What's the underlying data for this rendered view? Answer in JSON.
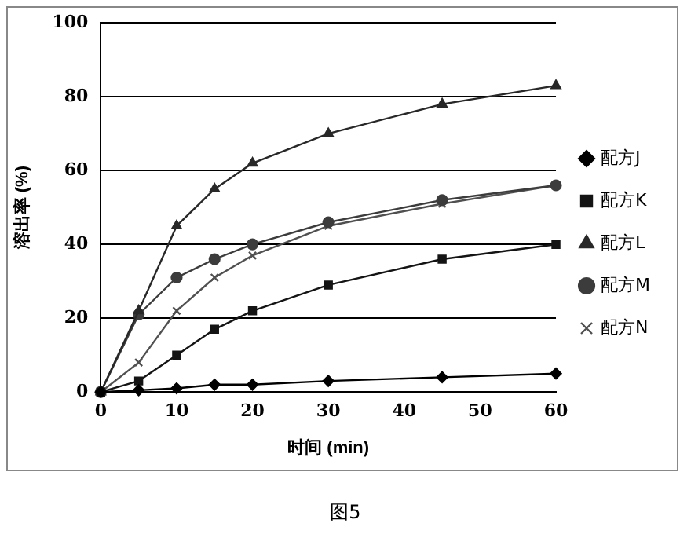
{
  "chart_data": {
    "type": "line",
    "xlabel": "时间 (min)",
    "ylabel": "溶出率 (%)",
    "x": [
      0,
      5,
      10,
      15,
      20,
      30,
      45,
      60
    ],
    "series": [
      {
        "name": "配方J",
        "color": "#000000",
        "marker": "diamond",
        "values": [
          0,
          0.5,
          1,
          2,
          2,
          3,
          4,
          5
        ]
      },
      {
        "name": "配方K",
        "color": "#141414",
        "marker": "square",
        "values": [
          0,
          3,
          10,
          17,
          22,
          29,
          36,
          40
        ]
      },
      {
        "name": "配方L",
        "color": "#282828",
        "marker": "triangle",
        "values": [
          0,
          22,
          45,
          55,
          62,
          70,
          78,
          83
        ]
      },
      {
        "name": "配方M",
        "color": "#3c3c3c",
        "marker": "circle",
        "values": [
          0,
          21,
          31,
          36,
          40,
          46,
          52,
          56
        ]
      },
      {
        "name": "配方N",
        "color": "#505050",
        "marker": "cross",
        "values": [
          0,
          8,
          22,
          31,
          37,
          45,
          51,
          56
        ]
      }
    ],
    "xlim": [
      0,
      60
    ],
    "xticks": [
      0,
      10,
      20,
      30,
      40,
      50,
      60
    ],
    "ylim": [
      0,
      100
    ],
    "yticks": [
      0,
      20,
      40,
      60,
      80,
      100
    ],
    "grid": "y",
    "legend": "right",
    "annotations": [
      "图5"
    ]
  }
}
